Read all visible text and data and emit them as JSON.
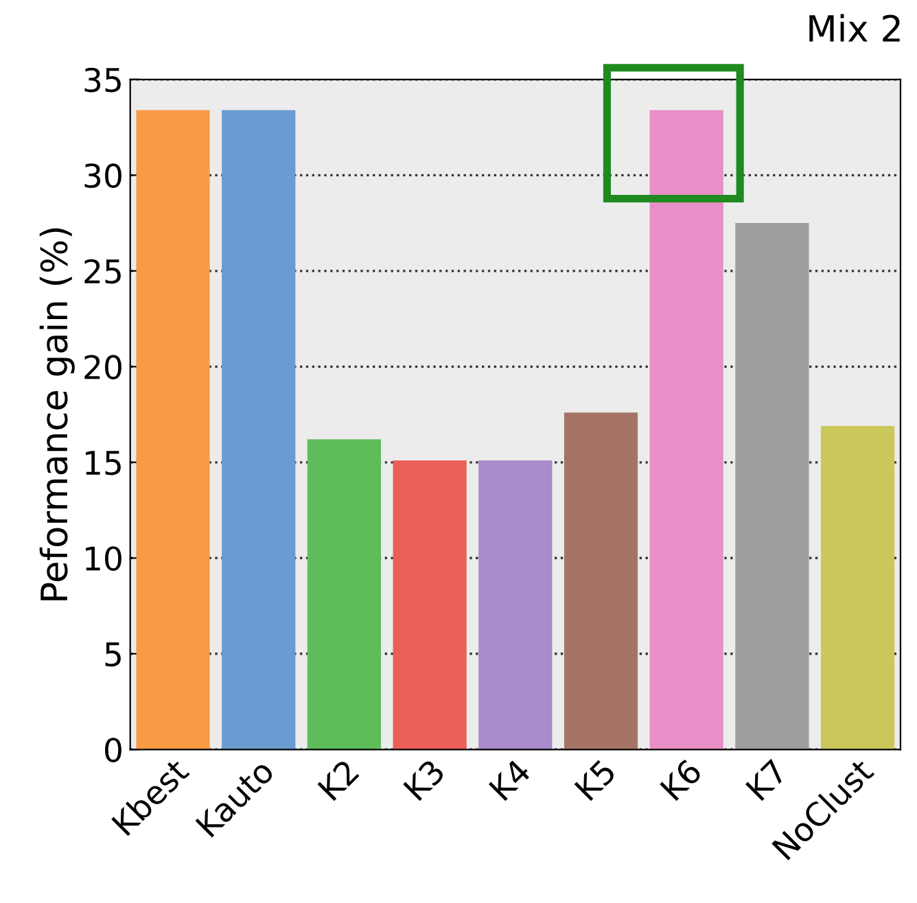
{
  "chart_data": {
    "type": "bar",
    "title": "Mix 2",
    "ylabel": "Peformance gain (%)",
    "categories": [
      "Kbest",
      "Kauto",
      "K2",
      "K3",
      "K4",
      "K5",
      "K6",
      "K7",
      "NoClust"
    ],
    "values": [
      33.4,
      33.4,
      16.2,
      15.1,
      15.1,
      17.6,
      33.4,
      27.5,
      16.9
    ],
    "colors": [
      "#f99a45",
      "#6a9bd1",
      "#5ebd5b",
      "#ea5f57",
      "#a98acb",
      "#a57466",
      "#e78fc6",
      "#9e9e9e",
      "#cbc75a"
    ],
    "ylim": [
      0,
      35
    ],
    "yticks": [
      0,
      5,
      10,
      15,
      20,
      25,
      30,
      35
    ],
    "grid": "y",
    "line_style": "dotted"
  }
}
